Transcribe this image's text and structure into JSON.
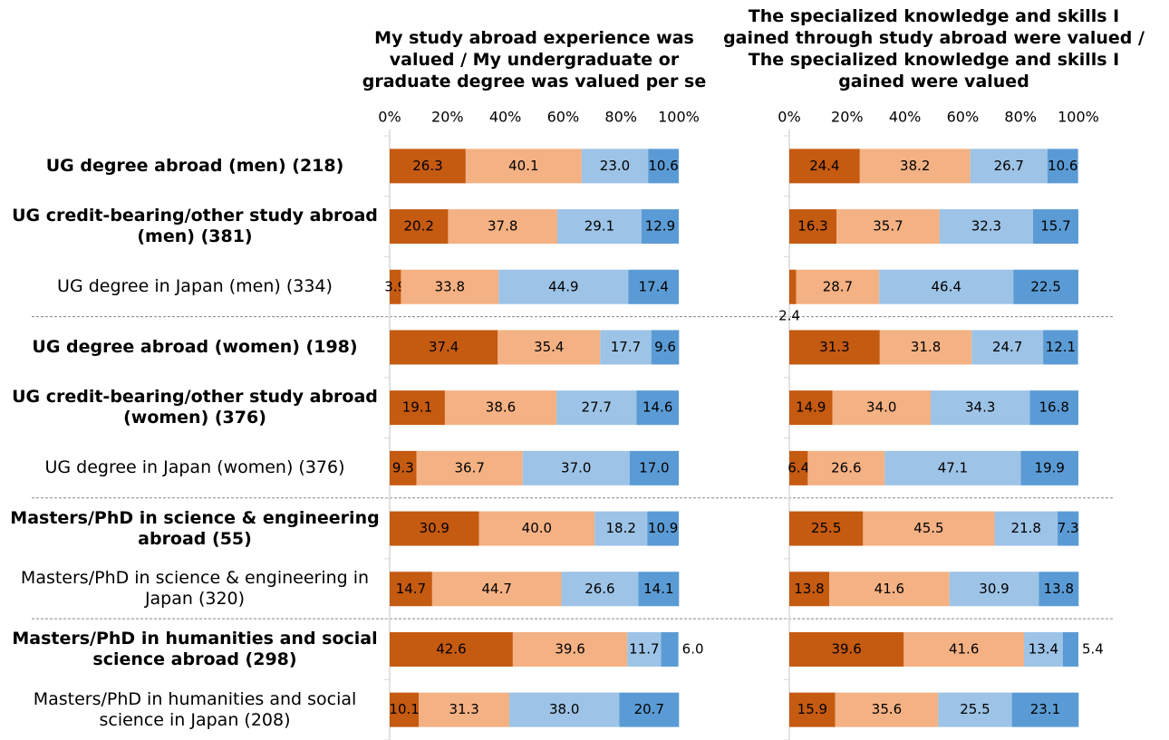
{
  "chart_data": {
    "type": "stacked_bar_horizontal",
    "categories": [
      "UG degree abroad (men) (218)",
      "UG credit-bearing/other study abroad (men) (381)",
      "UG degree in Japan (men) (334)",
      "UG degree abroad (women) (198)",
      "UG credit-bearing/other study abroad (women) (376)",
      "UG degree in Japan (women) (376)",
      "Masters/PhD in science & engineering abroad (55)",
      "Masters/PhD in science & engineering in Japan (320)",
      "Masters/PhD in humanities and social science abroad (298)",
      "Masters/PhD in humanities and social science in Japan (208)"
    ],
    "bold": [
      true,
      true,
      false,
      true,
      true,
      false,
      true,
      false,
      true,
      false
    ],
    "panels": [
      {
        "title": "My study abroad experience was valued / My undergraduate or graduate degree was valued per se",
        "xlim": [
          0,
          100
        ],
        "xticks": [
          {
            "value": 0,
            "label": "0%"
          },
          {
            "value": 20,
            "label": "20%"
          },
          {
            "value": 40,
            "label": "40%"
          },
          {
            "value": 60,
            "label": "60%"
          },
          {
            "value": 80,
            "label": "80%"
          },
          {
            "value": 100,
            "label": "100%"
          }
        ],
        "series": [
          {
            "color": "#c55a11",
            "values": [
              26.3,
              20.2,
              3.9,
              37.4,
              19.1,
              9.3,
              30.9,
              14.7,
              42.6,
              10.1
            ],
            "value_labels": [
              "26.3",
              "20.2",
              "3.9",
              "37.4",
              "19.1",
              "9.3",
              "30.9",
              "14.7",
              "42.6",
              "10.1"
            ]
          },
          {
            "color": "#f4b183",
            "values": [
              40.1,
              37.8,
              33.8,
              35.4,
              38.6,
              36.7,
              40.0,
              44.7,
              39.6,
              31.3
            ],
            "value_labels": [
              "40.1",
              "37.8",
              "33.8",
              "35.4",
              "38.6",
              "36.7",
              "40.0",
              "44.7",
              "39.6",
              "31.3"
            ]
          },
          {
            "color": "#9dc3e6",
            "values": [
              23.0,
              29.1,
              44.9,
              17.7,
              27.7,
              37.0,
              18.2,
              26.6,
              11.7,
              38.0
            ],
            "value_labels": [
              "23.0",
              "29.1",
              "44.9",
              "17.7",
              "27.7",
              "37.0",
              "18.2",
              "26.6",
              "11.7",
              "38.0"
            ]
          },
          {
            "color": "#5b9bd5",
            "values": [
              10.6,
              12.9,
              17.4,
              9.6,
              14.6,
              17.0,
              10.9,
              14.1,
              6.0,
              20.7
            ],
            "value_labels": [
              "10.6",
              "12.9",
              "17.4",
              "9.6",
              "14.6",
              "17.0",
              "10.9",
              "14.1",
              "6.0",
              "20.7"
            ]
          }
        ]
      },
      {
        "title": "The specialized knowledge and skills I gained through study abroad were valued / The specialized knowledge and skills I gained were valued",
        "xlim": [
          0,
          100
        ],
        "xticks": [
          {
            "value": 0,
            "label": "0%"
          },
          {
            "value": 20,
            "label": "20%"
          },
          {
            "value": 40,
            "label": "40%"
          },
          {
            "value": 60,
            "label": "60%"
          },
          {
            "value": 80,
            "label": "80%"
          },
          {
            "value": 100,
            "label": "100%"
          }
        ],
        "series": [
          {
            "color": "#c55a11",
            "values": [
              24.4,
              16.3,
              2.4,
              31.3,
              14.9,
              6.4,
              25.5,
              13.8,
              39.6,
              15.9
            ],
            "value_labels": [
              "24.4",
              "16.3",
              "2.4",
              "31.3",
              "14.9",
              "6.4",
              "25.5",
              "13.8",
              "39.6",
              "15.9"
            ]
          },
          {
            "color": "#f4b183",
            "values": [
              38.2,
              35.7,
              28.7,
              31.8,
              34.0,
              26.6,
              45.5,
              41.6,
              41.6,
              35.6
            ],
            "value_labels": [
              "38.2",
              "35.7",
              "28.7",
              "31.8",
              "34.0",
              "26.6",
              "45.5",
              "41.6",
              "41.6",
              "35.6"
            ]
          },
          {
            "color": "#9dc3e6",
            "values": [
              26.7,
              32.3,
              46.4,
              24.7,
              34.3,
              47.1,
              21.8,
              30.9,
              13.4,
              25.5
            ],
            "value_labels": [
              "26.7",
              "32.3",
              "46.4",
              "24.7",
              "34.3",
              "47.1",
              "21.8",
              "30.9",
              "13.4",
              "25.5"
            ]
          },
          {
            "color": "#5b9bd5",
            "values": [
              10.6,
              15.7,
              22.5,
              12.1,
              16.8,
              19.9,
              7.3,
              13.8,
              5.4,
              23.1
            ],
            "value_labels": [
              "10.6",
              "15.7",
              "22.5",
              "12.1",
              "16.8",
              "19.9",
              "7.3",
              "13.8",
              "5.4",
              "23.1"
            ]
          }
        ]
      }
    ]
  }
}
